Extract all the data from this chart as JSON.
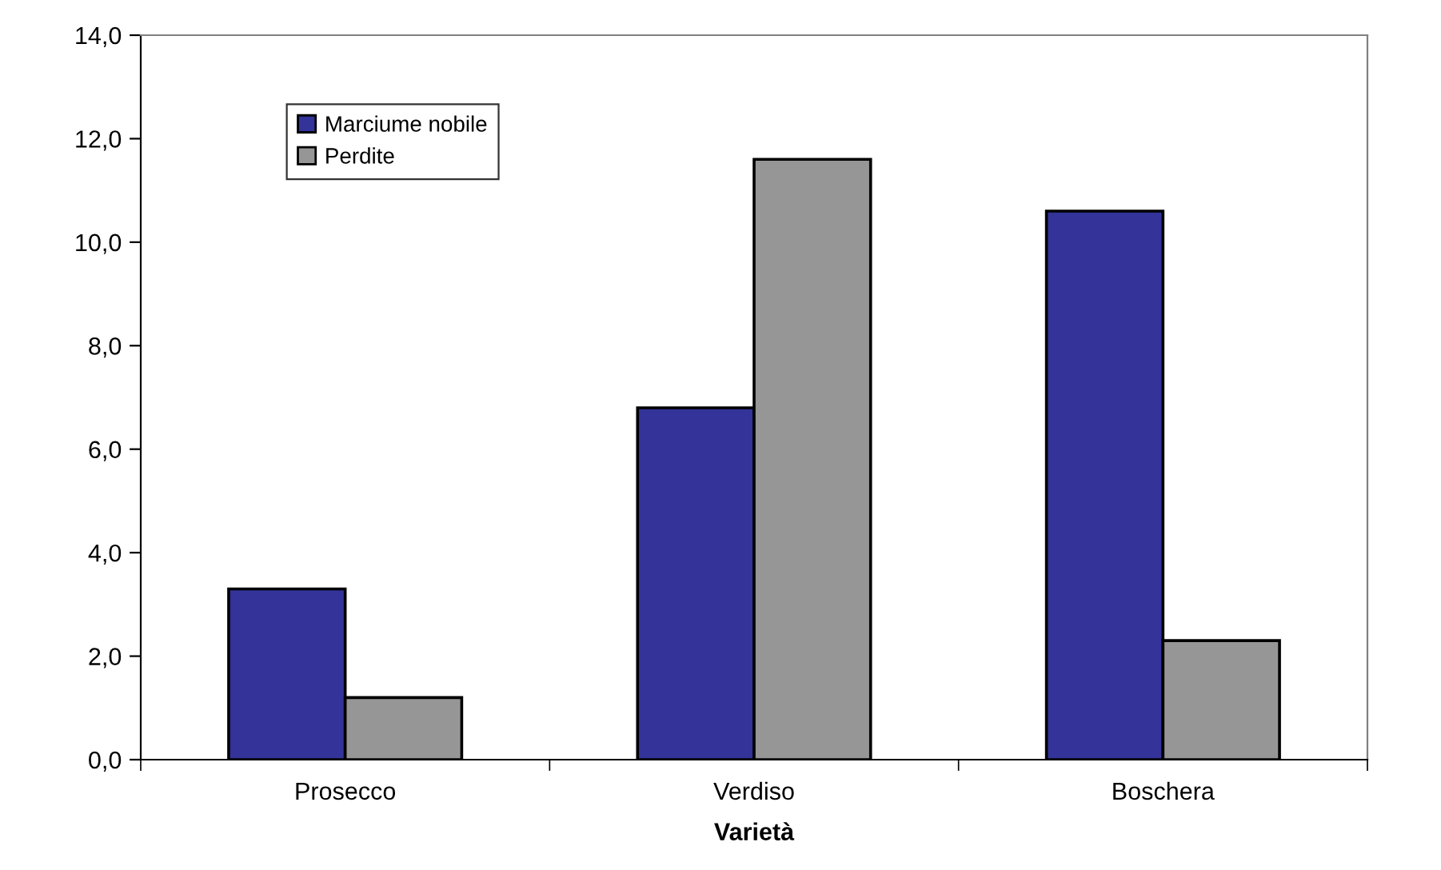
{
  "chart_data": {
    "type": "bar",
    "xlabel": "Varietà",
    "categories": [
      "Prosecco",
      "Verdiso",
      "Boschera"
    ],
    "series": [
      {
        "name": "Marciume nobile",
        "color": "#333399",
        "values": [
          3.3,
          6.8,
          10.6
        ]
      },
      {
        "name": "Perdite",
        "color": "#969696",
        "values": [
          1.2,
          11.6,
          2.3
        ]
      }
    ],
    "ylim": [
      0,
      14
    ],
    "yticks": [
      {
        "value": 0,
        "label": "0,0"
      },
      {
        "value": 2,
        "label": "2,0"
      },
      {
        "value": 4,
        "label": "4,0"
      },
      {
        "value": 6,
        "label": "6,0"
      },
      {
        "value": 8,
        "label": "8,0"
      },
      {
        "value": 10,
        "label": "10,0"
      },
      {
        "value": 12,
        "label": "12,0"
      },
      {
        "value": 14,
        "label": "14,0"
      }
    ],
    "grid": false,
    "legend": "top left"
  }
}
